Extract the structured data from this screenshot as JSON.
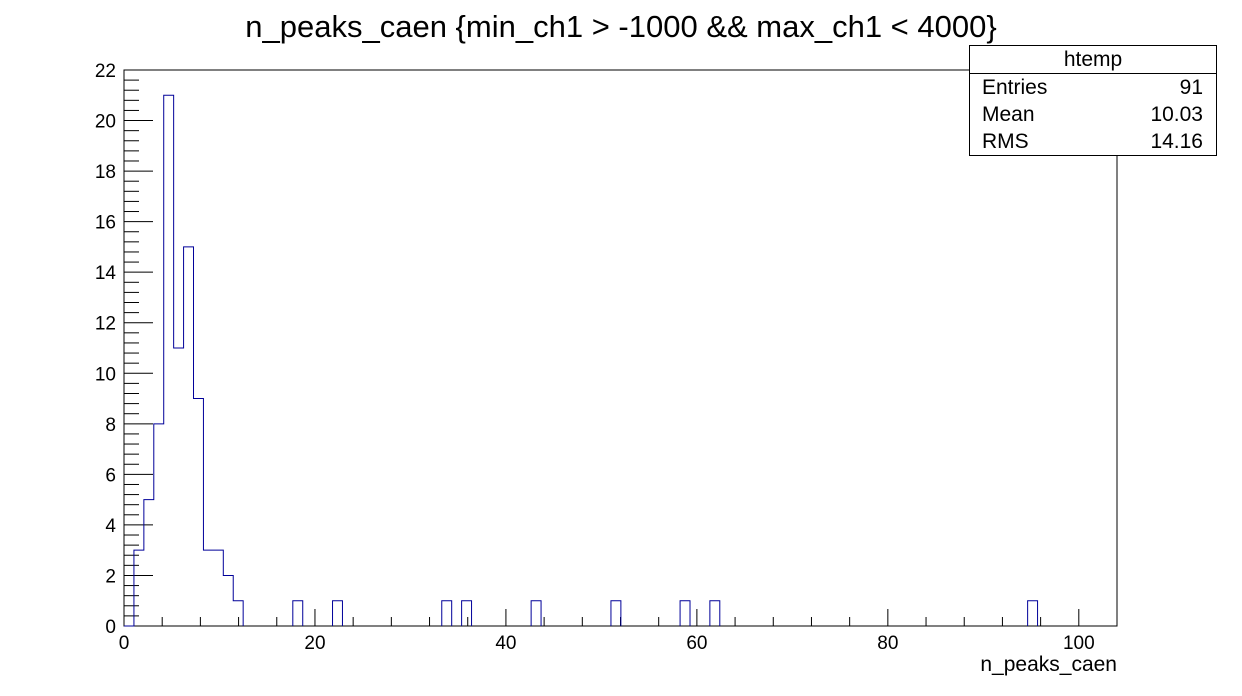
{
  "chart_data": {
    "type": "histogram",
    "title": "n_peaks_caen {min_ch1 > -1000 && max_ch1 < 4000}",
    "xlabel": "n_peaks_caen",
    "ylabel": "",
    "xlim": [
      0,
      104
    ],
    "ylim": [
      0,
      22
    ],
    "bin_width": 1.04,
    "x_ticks": [
      0,
      20,
      40,
      60,
      80,
      100
    ],
    "x_tick_labels": [
      "0",
      "20",
      "40",
      "60",
      "80",
      "100"
    ],
    "y_ticks": [
      0,
      2,
      4,
      6,
      8,
      10,
      12,
      14,
      16,
      18,
      20,
      22
    ],
    "y_tick_labels": [
      "0",
      "2",
      "4",
      "6",
      "8",
      "10",
      "12",
      "14",
      "16",
      "18",
      "20",
      "22"
    ],
    "bins": [
      {
        "x": 0.0,
        "count": 0
      },
      {
        "x": 1.04,
        "count": 3
      },
      {
        "x": 2.08,
        "count": 5
      },
      {
        "x": 3.12,
        "count": 8
      },
      {
        "x": 4.16,
        "count": 21
      },
      {
        "x": 5.2,
        "count": 11
      },
      {
        "x": 6.24,
        "count": 15
      },
      {
        "x": 7.28,
        "count": 9
      },
      {
        "x": 8.32,
        "count": 3
      },
      {
        "x": 9.36,
        "count": 3
      },
      {
        "x": 10.4,
        "count": 2
      },
      {
        "x": 11.44,
        "count": 1
      },
      {
        "x": 17.68,
        "count": 1
      },
      {
        "x": 21.84,
        "count": 1
      },
      {
        "x": 33.28,
        "count": 1
      },
      {
        "x": 35.36,
        "count": 1
      },
      {
        "x": 42.64,
        "count": 1
      },
      {
        "x": 51.0,
        "count": 1
      },
      {
        "x": 58.24,
        "count": 1
      },
      {
        "x": 61.36,
        "count": 1
      },
      {
        "x": 94.64,
        "count": 1
      }
    ],
    "line_color": "#000099",
    "grid": false
  },
  "stats_box": {
    "name": "htemp",
    "entries_label": "Entries",
    "entries_value": "91",
    "mean_label": "Mean",
    "mean_value": "10.03",
    "rms_label": "RMS",
    "rms_value": "14.16"
  }
}
